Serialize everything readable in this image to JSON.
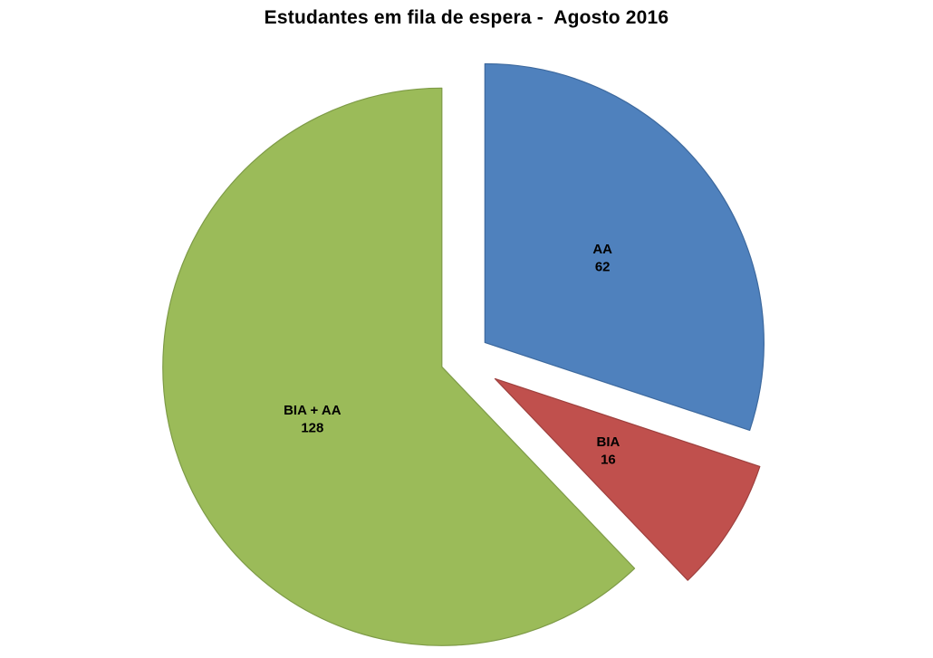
{
  "chart_data": {
    "type": "pie",
    "title": "Estudantes em fila de espera -  Agosto 2016",
    "total": 206,
    "start_angle_deg": 0,
    "direction": "clockwise",
    "legend": "none",
    "background": "#FFFFFF",
    "center": [
      511,
      396
    ],
    "radius": 308,
    "slices": [
      {
        "id": "aa",
        "label": "AA",
        "value": 62,
        "color": "#4F81BD",
        "stroke": "#3d699e",
        "explode": 30,
        "label_r": 0.52
      },
      {
        "id": "bia",
        "label": "BIA",
        "value": 16,
        "color": "#C0504D",
        "stroke": "#9e403e",
        "explode": 42,
        "label_r": 0.48
      },
      {
        "id": "bia-aa",
        "label": "BIA + AA",
        "value": 128,
        "color": "#9BBB59",
        "stroke": "#7e9b47",
        "explode": 25,
        "label_r": 0.5
      }
    ]
  }
}
